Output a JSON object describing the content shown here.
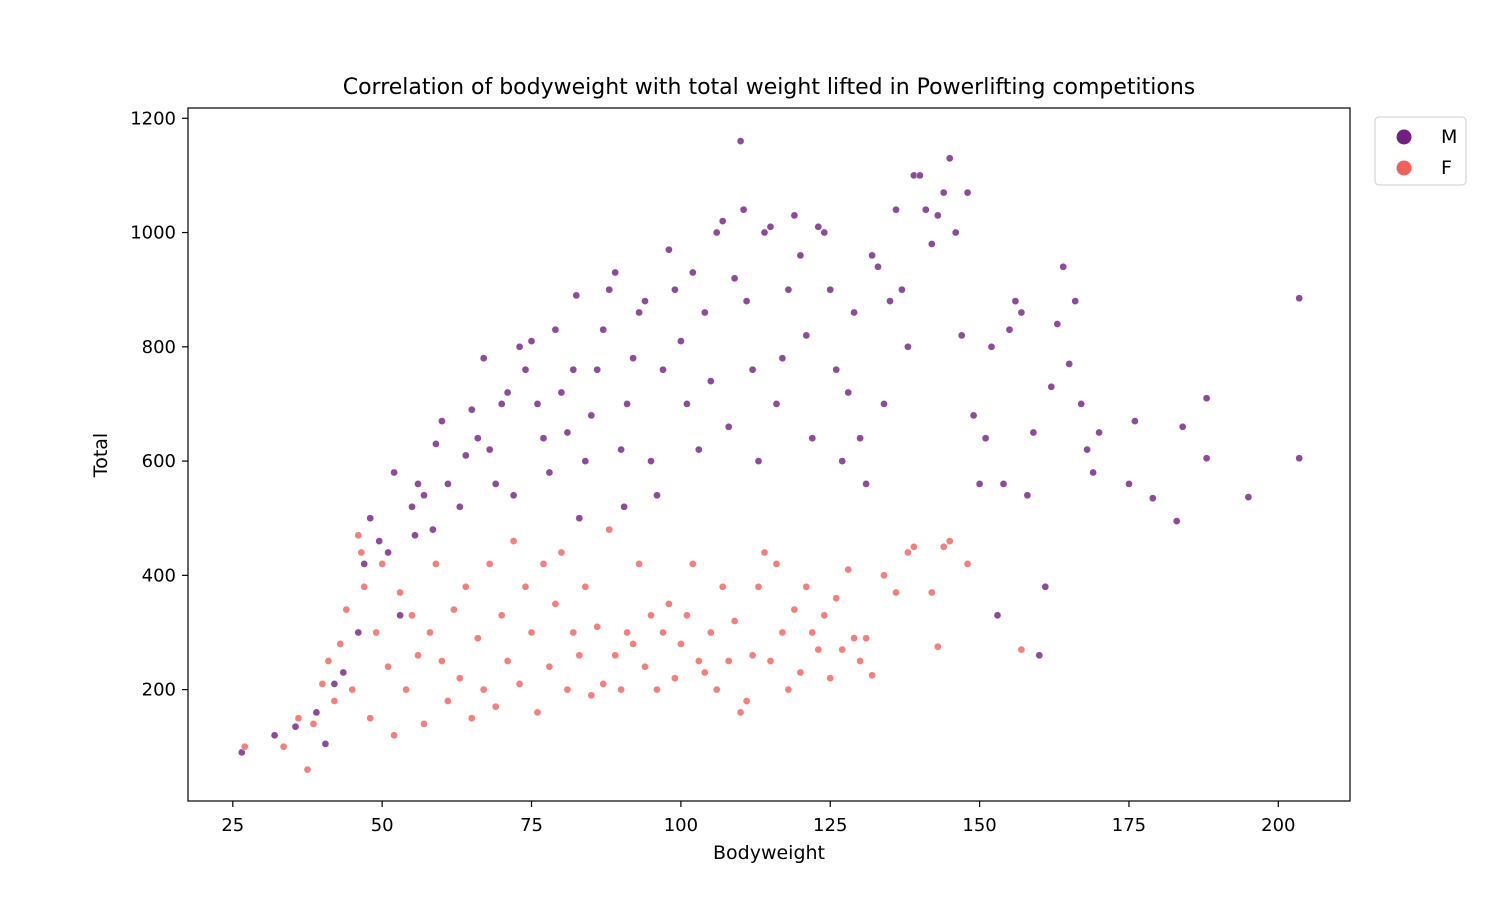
{
  "chart_data": {
    "type": "scatter",
    "title": "Correlation of bodyweight with total weight lifted in Powerlifting competitions",
    "xlabel": "Bodyweight",
    "ylabel": "Total",
    "xlim": [
      17.5,
      212
    ],
    "ylim": [
      5,
      1218
    ],
    "xticks": [
      25,
      50,
      75,
      100,
      125,
      150,
      175,
      200
    ],
    "yticks": [
      200,
      400,
      600,
      800,
      1000,
      1200
    ],
    "grid": false,
    "legend_position": "outside top-right",
    "series": [
      {
        "name": "M",
        "color": "#711f81",
        "points": [
          [
            26.5,
            90
          ],
          [
            32,
            120
          ],
          [
            35.5,
            135
          ],
          [
            39,
            160
          ],
          [
            40.5,
            105
          ],
          [
            42,
            210
          ],
          [
            43.5,
            230
          ],
          [
            46,
            300
          ],
          [
            47,
            420
          ],
          [
            48,
            500
          ],
          [
            49.5,
            460
          ],
          [
            51,
            440
          ],
          [
            52,
            580
          ],
          [
            53,
            330
          ],
          [
            55,
            520
          ],
          [
            55.5,
            470
          ],
          [
            56,
            560
          ],
          [
            57,
            540
          ],
          [
            58.5,
            480
          ],
          [
            59,
            630
          ],
          [
            60,
            670
          ],
          [
            61,
            560
          ],
          [
            63,
            520
          ],
          [
            64,
            610
          ],
          [
            65,
            690
          ],
          [
            66,
            640
          ],
          [
            67,
            780
          ],
          [
            68,
            620
          ],
          [
            69,
            560
          ],
          [
            70,
            700
          ],
          [
            71,
            720
          ],
          [
            72,
            540
          ],
          [
            73,
            800
          ],
          [
            74,
            760
          ],
          [
            75,
            810
          ],
          [
            76,
            700
          ],
          [
            77,
            640
          ],
          [
            78,
            580
          ],
          [
            79,
            830
          ],
          [
            80,
            720
          ],
          [
            81,
            650
          ],
          [
            82,
            760
          ],
          [
            82.5,
            890
          ],
          [
            83,
            500
          ],
          [
            84,
            600
          ],
          [
            85,
            680
          ],
          [
            86,
            760
          ],
          [
            87,
            830
          ],
          [
            88,
            900
          ],
          [
            89,
            930
          ],
          [
            90,
            620
          ],
          [
            90.5,
            520
          ],
          [
            91,
            700
          ],
          [
            92,
            780
          ],
          [
            93,
            860
          ],
          [
            94,
            880
          ],
          [
            95,
            600
          ],
          [
            96,
            540
          ],
          [
            97,
            760
          ],
          [
            98,
            970
          ],
          [
            99,
            900
          ],
          [
            100,
            810
          ],
          [
            101,
            700
          ],
          [
            102,
            930
          ],
          [
            103,
            620
          ],
          [
            104,
            860
          ],
          [
            105,
            740
          ],
          [
            106,
            1000
          ],
          [
            107,
            1020
          ],
          [
            108,
            660
          ],
          [
            109,
            920
          ],
          [
            110,
            1160
          ],
          [
            110.5,
            1040
          ],
          [
            111,
            880
          ],
          [
            112,
            760
          ],
          [
            113,
            600
          ],
          [
            114,
            1000
          ],
          [
            115,
            1010
          ],
          [
            116,
            700
          ],
          [
            117,
            780
          ],
          [
            118,
            900
          ],
          [
            119,
            1030
          ],
          [
            120,
            960
          ],
          [
            121,
            820
          ],
          [
            122,
            640
          ],
          [
            123,
            1010
          ],
          [
            124,
            1000
          ],
          [
            125,
            900
          ],
          [
            126,
            760
          ],
          [
            127,
            600
          ],
          [
            128,
            720
          ],
          [
            129,
            860
          ],
          [
            130,
            640
          ],
          [
            131,
            560
          ],
          [
            132,
            960
          ],
          [
            133,
            940
          ],
          [
            134,
            700
          ],
          [
            135,
            880
          ],
          [
            136,
            1040
          ],
          [
            137,
            900
          ],
          [
            138,
            800
          ],
          [
            139,
            1100
          ],
          [
            140,
            1100
          ],
          [
            141,
            1040
          ],
          [
            142,
            980
          ],
          [
            143,
            1030
          ],
          [
            144,
            1070
          ],
          [
            145,
            1130
          ],
          [
            146,
            1000
          ],
          [
            147,
            820
          ],
          [
            148,
            1070
          ],
          [
            149,
            680
          ],
          [
            150,
            560
          ],
          [
            151,
            640
          ],
          [
            152,
            800
          ],
          [
            153,
            330
          ],
          [
            154,
            560
          ],
          [
            155,
            830
          ],
          [
            156,
            880
          ],
          [
            157,
            860
          ],
          [
            158,
            540
          ],
          [
            159,
            650
          ],
          [
            160,
            260
          ],
          [
            161,
            380
          ],
          [
            162,
            730
          ],
          [
            163,
            840
          ],
          [
            164,
            940
          ],
          [
            165,
            770
          ],
          [
            166,
            880
          ],
          [
            167,
            700
          ],
          [
            168,
            620
          ],
          [
            169,
            580
          ],
          [
            170,
            650
          ],
          [
            175,
            560
          ],
          [
            176,
            670
          ],
          [
            179,
            535
          ],
          [
            183,
            495
          ],
          [
            184,
            660
          ],
          [
            188,
            605
          ],
          [
            188,
            710
          ],
          [
            195,
            537
          ],
          [
            203.5,
            605
          ],
          [
            203.5,
            885
          ]
        ]
      },
      {
        "name": "F",
        "color": "#f0605d",
        "points": [
          [
            27,
            100
          ],
          [
            33.5,
            100
          ],
          [
            36,
            150
          ],
          [
            37.5,
            60
          ],
          [
            38.5,
            140
          ],
          [
            40,
            210
          ],
          [
            41,
            250
          ],
          [
            42,
            180
          ],
          [
            43,
            280
          ],
          [
            44,
            340
          ],
          [
            45,
            200
          ],
          [
            46,
            470
          ],
          [
            46.5,
            440
          ],
          [
            47,
            380
          ],
          [
            48,
            150
          ],
          [
            49,
            300
          ],
          [
            50,
            420
          ],
          [
            51,
            240
          ],
          [
            52,
            120
          ],
          [
            53,
            370
          ],
          [
            54,
            200
          ],
          [
            55,
            330
          ],
          [
            56,
            260
          ],
          [
            57,
            140
          ],
          [
            58,
            300
          ],
          [
            59,
            420
          ],
          [
            60,
            250
          ],
          [
            61,
            180
          ],
          [
            62,
            340
          ],
          [
            63,
            220
          ],
          [
            64,
            380
          ],
          [
            65,
            150
          ],
          [
            66,
            290
          ],
          [
            67,
            200
          ],
          [
            68,
            420
          ],
          [
            69,
            170
          ],
          [
            70,
            330
          ],
          [
            71,
            250
          ],
          [
            72,
            460
          ],
          [
            73,
            210
          ],
          [
            74,
            380
          ],
          [
            75,
            300
          ],
          [
            76,
            160
          ],
          [
            77,
            420
          ],
          [
            78,
            240
          ],
          [
            79,
            350
          ],
          [
            80,
            440
          ],
          [
            81,
            200
          ],
          [
            82,
            300
          ],
          [
            83,
            260
          ],
          [
            84,
            380
          ],
          [
            85,
            190
          ],
          [
            86,
            310
          ],
          [
            87,
            210
          ],
          [
            88,
            480
          ],
          [
            89,
            260
          ],
          [
            90,
            200
          ],
          [
            91,
            300
          ],
          [
            92,
            280
          ],
          [
            93,
            420
          ],
          [
            94,
            240
          ],
          [
            95,
            330
          ],
          [
            96,
            200
          ],
          [
            97,
            300
          ],
          [
            98,
            350
          ],
          [
            99,
            220
          ],
          [
            100,
            280
          ],
          [
            101,
            330
          ],
          [
            102,
            420
          ],
          [
            103,
            250
          ],
          [
            104,
            230
          ],
          [
            105,
            300
          ],
          [
            106,
            200
          ],
          [
            107,
            380
          ],
          [
            108,
            250
          ],
          [
            109,
            320
          ],
          [
            110,
            160
          ],
          [
            111,
            180
          ],
          [
            112,
            260
          ],
          [
            113,
            380
          ],
          [
            114,
            440
          ],
          [
            115,
            250
          ],
          [
            116,
            420
          ],
          [
            117,
            300
          ],
          [
            118,
            200
          ],
          [
            119,
            340
          ],
          [
            120,
            230
          ],
          [
            121,
            380
          ],
          [
            122,
            300
          ],
          [
            123,
            270
          ],
          [
            124,
            330
          ],
          [
            125,
            220
          ],
          [
            126,
            360
          ],
          [
            127,
            270
          ],
          [
            128,
            410
          ],
          [
            129,
            290
          ],
          [
            130,
            250
          ],
          [
            131,
            290
          ],
          [
            132,
            225
          ],
          [
            134,
            400
          ],
          [
            136,
            370
          ],
          [
            138,
            440
          ],
          [
            139,
            450
          ],
          [
            142,
            370
          ],
          [
            143,
            275
          ],
          [
            144,
            450
          ],
          [
            145,
            460
          ],
          [
            148,
            420
          ],
          [
            157,
            270
          ]
        ]
      }
    ]
  }
}
